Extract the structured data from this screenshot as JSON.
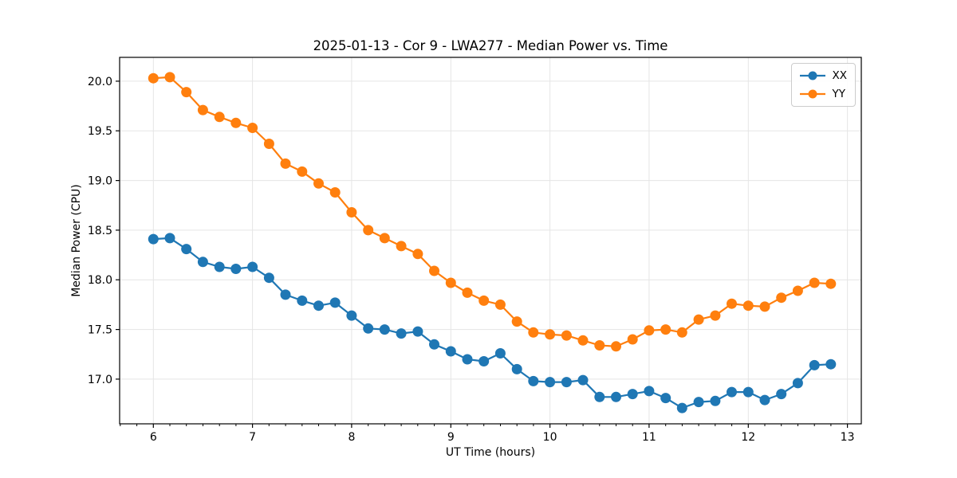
{
  "chart_data": {
    "type": "line",
    "title": "2025-01-13 - Cor 9 - LWA277 - Median Power vs. Time",
    "xlabel": "UT Time (hours)",
    "ylabel": "Median Power (CPU)",
    "xlim": [
      5.66,
      13.14
    ],
    "ylim": [
      16.55,
      20.24
    ],
    "x_ticks": [
      6,
      7,
      8,
      9,
      10,
      11,
      12,
      13
    ],
    "x_minor_tick_step": 0.16667,
    "y_ticks": [
      17.0,
      17.5,
      18.0,
      18.5,
      19.0,
      19.5,
      20.0
    ],
    "grid": true,
    "legend_position": "upper right",
    "x": [
      6.0,
      6.167,
      6.333,
      6.5,
      6.667,
      6.833,
      7.0,
      7.167,
      7.333,
      7.5,
      7.667,
      7.833,
      8.0,
      8.167,
      8.333,
      8.5,
      8.667,
      8.833,
      9.0,
      9.167,
      9.333,
      9.5,
      9.667,
      9.833,
      10.0,
      10.167,
      10.333,
      10.5,
      10.667,
      10.833,
      11.0,
      11.167,
      11.333,
      11.5,
      11.667,
      11.833,
      12.0,
      12.167,
      12.333,
      12.5,
      12.667,
      12.833
    ],
    "series": [
      {
        "name": "XX",
        "color": "#1f77b4",
        "values": [
          18.41,
          18.42,
          18.31,
          18.18,
          18.13,
          18.11,
          18.13,
          18.02,
          17.85,
          17.79,
          17.74,
          17.77,
          17.64,
          17.51,
          17.5,
          17.46,
          17.48,
          17.35,
          17.28,
          17.2,
          17.18,
          17.26,
          17.1,
          16.98,
          16.97,
          16.97,
          16.99,
          16.82,
          16.82,
          16.85,
          16.88,
          16.81,
          16.71,
          16.77,
          16.78,
          16.87,
          16.87,
          16.79,
          16.85,
          16.96,
          17.14,
          17.15
        ]
      },
      {
        "name": "YY",
        "color": "#ff7f0e",
        "values": [
          20.03,
          20.04,
          19.89,
          19.71,
          19.64,
          19.58,
          19.53,
          19.37,
          19.17,
          19.09,
          18.97,
          18.88,
          18.68,
          18.5,
          18.42,
          18.34,
          18.26,
          18.09,
          17.97,
          17.87,
          17.79,
          17.75,
          17.58,
          17.47,
          17.45,
          17.44,
          17.39,
          17.34,
          17.33,
          17.4,
          17.49,
          17.5,
          17.47,
          17.6,
          17.64,
          17.76,
          17.74,
          17.73,
          17.82,
          17.89,
          17.97,
          17.96
        ]
      }
    ],
    "styles": {
      "grid_color": "#e5e5e5",
      "spine_color": "#000000",
      "line_width": 2.2,
      "marker_radius": 6.5
    }
  }
}
